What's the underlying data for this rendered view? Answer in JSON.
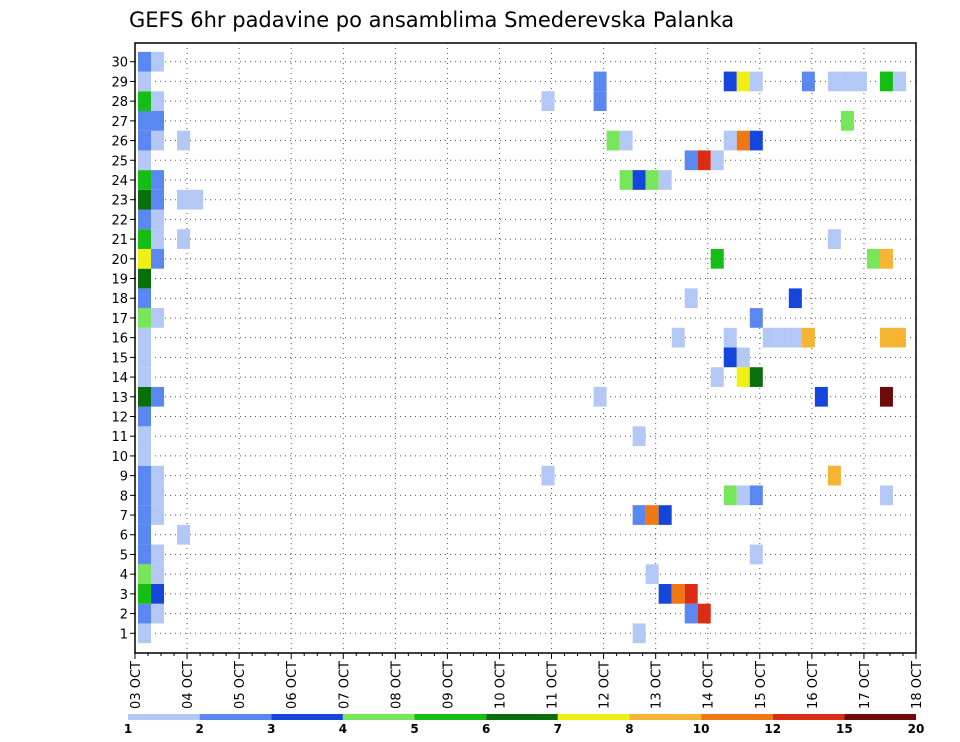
{
  "chart_data": {
    "type": "heatmap",
    "title": "GEFS 6hr padavine po ansamblima Smederevska Palanka",
    "xlabel": "",
    "ylabel": "",
    "x_ticks": [
      "03 OCT",
      "04 OCT",
      "05 OCT",
      "06 OCT",
      "07 OCT",
      "08 OCT",
      "09 OCT",
      "10 OCT",
      "11 OCT",
      "12 OCT",
      "13 OCT",
      "14 OCT",
      "15 OCT",
      "16 OCT",
      "17 OCT",
      "18 OCT"
    ],
    "y_ticks": [
      1,
      2,
      3,
      4,
      5,
      6,
      7,
      8,
      9,
      10,
      11,
      12,
      13,
      14,
      15,
      16,
      17,
      18,
      19,
      20,
      21,
      22,
      23,
      24,
      25,
      26,
      27,
      28,
      29,
      30
    ],
    "x_range_days": [
      0,
      15
    ],
    "y_range": [
      0,
      30
    ],
    "step_hours": 6,
    "grid": "dotted",
    "colorbar": {
      "labels": [
        "1",
        "2",
        "3",
        "4",
        "5",
        "6",
        "7",
        "8",
        "10",
        "12",
        "15",
        "20"
      ],
      "colors": [
        "#b4c8f5",
        "#5a87f0",
        "#1446dc",
        "#78e65a",
        "#14be14",
        "#0a6e0a",
        "#f0f014",
        "#f5b432",
        "#f07814",
        "#dc2d14",
        "#6e0a0a"
      ]
    },
    "cells": [
      [
        0,
        1,
        1
      ],
      [
        0,
        2,
        2
      ],
      [
        0,
        3,
        5
      ],
      [
        0,
        4,
        4
      ],
      [
        0,
        5,
        2
      ],
      [
        0,
        6,
        2
      ],
      [
        0,
        7,
        2
      ],
      [
        0,
        8,
        2
      ],
      [
        0,
        9,
        2
      ],
      [
        0,
        10,
        1
      ],
      [
        0,
        11,
        1
      ],
      [
        0,
        12,
        2
      ],
      [
        0,
        13,
        6
      ],
      [
        0,
        14,
        1
      ],
      [
        0,
        15,
        1
      ],
      [
        0,
        16,
        1
      ],
      [
        0,
        17,
        4
      ],
      [
        0,
        18,
        2
      ],
      [
        0,
        19,
        6
      ],
      [
        0,
        20,
        7
      ],
      [
        0,
        21,
        5
      ],
      [
        0,
        22,
        2
      ],
      [
        0,
        23,
        6
      ],
      [
        0,
        24,
        5
      ],
      [
        0,
        25,
        1
      ],
      [
        0,
        26,
        2
      ],
      [
        0,
        27,
        2
      ],
      [
        0,
        28,
        5
      ],
      [
        0,
        29,
        1
      ],
      [
        0,
        30,
        2
      ],
      [
        1,
        2,
        1
      ],
      [
        1,
        3,
        3
      ],
      [
        1,
        4,
        1
      ],
      [
        1,
        5,
        1
      ],
      [
        1,
        7,
        1
      ],
      [
        1,
        8,
        1
      ],
      [
        1,
        9,
        1
      ],
      [
        1,
        13,
        2
      ],
      [
        1,
        17,
        1
      ],
      [
        1,
        20,
        2
      ],
      [
        1,
        21,
        1
      ],
      [
        1,
        22,
        1
      ],
      [
        1,
        23,
        2
      ],
      [
        1,
        24,
        2
      ],
      [
        1,
        26,
        1
      ],
      [
        1,
        27,
        2
      ],
      [
        1,
        28,
        1
      ],
      [
        1,
        30,
        1
      ],
      [
        3,
        6,
        1
      ],
      [
        3,
        21,
        1
      ],
      [
        3,
        26,
        1
      ],
      [
        3,
        23,
        1
      ],
      [
        4,
        23,
        1
      ],
      [
        31,
        9,
        1
      ],
      [
        31,
        28,
        1
      ],
      [
        35,
        13,
        1
      ],
      [
        35,
        28,
        2
      ],
      [
        35,
        29,
        2
      ],
      [
        36,
        26,
        4
      ],
      [
        37,
        26,
        1
      ],
      [
        37,
        24,
        4
      ],
      [
        38,
        1,
        1
      ],
      [
        38,
        11,
        1
      ],
      [
        39,
        4,
        1
      ],
      [
        38,
        7,
        2
      ],
      [
        39,
        7,
        9
      ],
      [
        40,
        7,
        3
      ],
      [
        38,
        24,
        3
      ],
      [
        39,
        24,
        4
      ],
      [
        40,
        24,
        1
      ],
      [
        40,
        3,
        3
      ],
      [
        41,
        3,
        9
      ],
      [
        42,
        3,
        10
      ],
      [
        42,
        2,
        2
      ],
      [
        43,
        2,
        10
      ],
      [
        41,
        16,
        1
      ],
      [
        42,
        18,
        1
      ],
      [
        42,
        25,
        2
      ],
      [
        43,
        25,
        10
      ],
      [
        44,
        25,
        1
      ],
      [
        44,
        14,
        1
      ],
      [
        44,
        20,
        5
      ],
      [
        45,
        8,
        4
      ],
      [
        46,
        8,
        1
      ],
      [
        47,
        8,
        2
      ],
      [
        45,
        15,
        3
      ],
      [
        46,
        15,
        1
      ],
      [
        45,
        16,
        1
      ],
      [
        46,
        14,
        7
      ],
      [
        47,
        14,
        6
      ],
      [
        45,
        26,
        1
      ],
      [
        46,
        26,
        9
      ],
      [
        47,
        26,
        3
      ],
      [
        45,
        29,
        3
      ],
      [
        46,
        29,
        7
      ],
      [
        47,
        29,
        1
      ],
      [
        47,
        5,
        1
      ],
      [
        47,
        17,
        2
      ],
      [
        48,
        16,
        1
      ],
      [
        49,
        16,
        1
      ],
      [
        50,
        16,
        1
      ],
      [
        51,
        16,
        8
      ],
      [
        50,
        18,
        3
      ],
      [
        51,
        29,
        2
      ],
      [
        52,
        13,
        3
      ],
      [
        53,
        9,
        8
      ],
      [
        53,
        21,
        1
      ],
      [
        53,
        29,
        1
      ],
      [
        54,
        29,
        1
      ],
      [
        55,
        29,
        1
      ],
      [
        54,
        27,
        4
      ],
      [
        56,
        20,
        4
      ],
      [
        57,
        20,
        8
      ],
      [
        57,
        29,
        5
      ],
      [
        58,
        29,
        1
      ],
      [
        57,
        13,
        11
      ],
      [
        57,
        16,
        8
      ],
      [
        58,
        16,
        8
      ],
      [
        57,
        8,
        1
      ]
    ]
  }
}
